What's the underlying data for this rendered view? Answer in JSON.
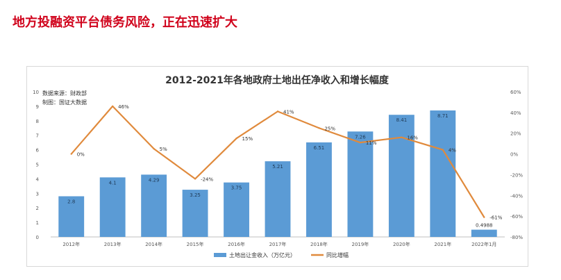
{
  "headline": "地方投融资平台债务风险，正在迅速扩大",
  "chart_data": {
    "type": "bar+line",
    "title": "2012-2021年各地政府土地出任净收入和增长幅度",
    "source_lines": [
      "数据来源：财政部",
      "制图：国证大数据"
    ],
    "categories": [
      "2012年",
      "2013年",
      "2014年",
      "2015年",
      "2016年",
      "2017年",
      "2018年",
      "2019年",
      "2020年",
      "2021年",
      "2022年1月"
    ],
    "bar_series": {
      "name": "土地出让金收入（万亿元）",
      "values": [
        2.8,
        4.1,
        4.29,
        3.25,
        3.75,
        5.21,
        6.51,
        7.26,
        8.41,
        8.71,
        0.4988
      ],
      "labels": [
        "2.8",
        "4.1",
        "4.29",
        "3.25",
        "3.75",
        "5.21",
        "6.51",
        "7.26",
        "8.41",
        "8.71",
        "0.4988"
      ],
      "color": "#5b9bd5"
    },
    "line_series": {
      "name": "同比增幅",
      "values": [
        0,
        46,
        5,
        -24,
        15,
        41,
        25,
        11,
        16,
        4,
        -61
      ],
      "labels": [
        "0%",
        "46%",
        "5%",
        "-24%",
        "15%",
        "41%",
        "25%",
        "11%",
        "16%",
        "4%",
        "-61%"
      ],
      "color": "#e08a3c"
    },
    "y_left": {
      "min": 0,
      "max": 10,
      "ticks": [
        "0",
        "1",
        "2",
        "3",
        "4",
        "5",
        "6",
        "7",
        "8",
        "9",
        "10"
      ]
    },
    "y_right": {
      "min": -80,
      "max": 60,
      "ticks": [
        "-80%",
        "-60%",
        "-40%",
        "-20%",
        "0%",
        "20%",
        "40%",
        "60%"
      ]
    },
    "legend_position": "bottom",
    "grid": false
  }
}
